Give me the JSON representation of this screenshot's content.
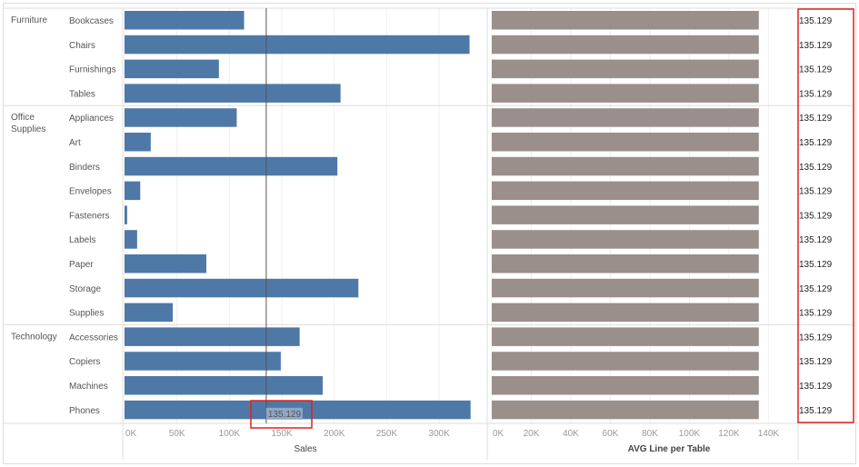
{
  "chart_data": {
    "type": "bar",
    "groups": [
      {
        "name": "Furniture",
        "categories": [
          "Bookcases",
          "Chairs",
          "Furnishings",
          "Tables"
        ]
      },
      {
        "name": "Office Supplies",
        "categories": [
          "Appliances",
          "Art",
          "Binders",
          "Envelopes",
          "Fasteners",
          "Labels",
          "Paper",
          "Storage",
          "Supplies"
        ]
      },
      {
        "name": "Technology",
        "categories": [
          "Accessories",
          "Copiers",
          "Machines",
          "Phones"
        ]
      }
    ],
    "series": [
      {
        "name": "Sales",
        "values": [
          114000,
          329000,
          90000,
          206000,
          107000,
          25000,
          203000,
          15000,
          2500,
          12000,
          78000,
          223000,
          46000,
          167000,
          149000,
          189000,
          330000
        ],
        "color": "#4e79a7",
        "xlim": [
          0,
          345000
        ],
        "ticks": [
          "0K",
          "50K",
          "100K",
          "150K",
          "200K",
          "250K",
          "300K"
        ],
        "tick_values": [
          0,
          50000,
          100000,
          150000,
          200000,
          250000,
          300000
        ]
      },
      {
        "name": "AVG Line per Table",
        "values": [
          135129,
          135129,
          135129,
          135129,
          135129,
          135129,
          135129,
          135129,
          135129,
          135129,
          135129,
          135129,
          135129,
          135129,
          135129,
          135129,
          135129
        ],
        "color": "#9a8f8b",
        "xlim": [
          0,
          155000
        ],
        "ticks": [
          "0K",
          "20K",
          "40K",
          "60K",
          "80K",
          "100K",
          "120K",
          "140K"
        ],
        "tick_values": [
          0,
          20000,
          40000,
          60000,
          80000,
          100000,
          120000,
          140000
        ]
      }
    ],
    "data_label": "135.129",
    "reference_line": {
      "value": 135129,
      "label": "135.129"
    },
    "xlabels": [
      "Sales",
      "AVG Line per Table"
    ],
    "highlight_color": "#e02020"
  }
}
